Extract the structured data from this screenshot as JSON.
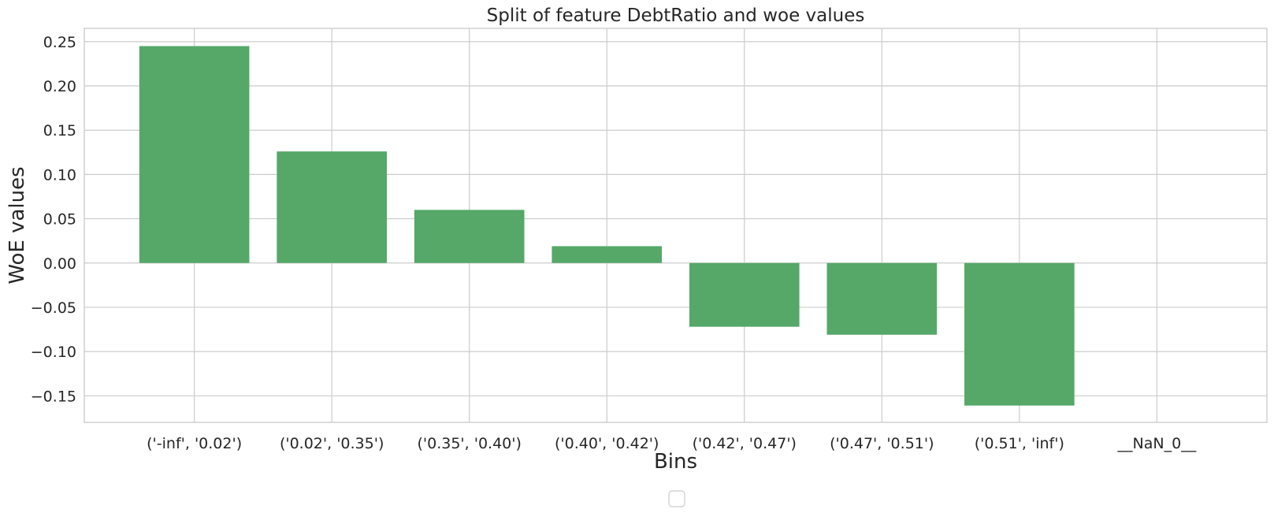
{
  "chart_data": {
    "type": "bar",
    "title": "Split of feature DebtRatio and woe values",
    "xlabel": "Bins",
    "ylabel": "WoE values",
    "categories": [
      "('-inf', '0.02')",
      "('0.02', '0.35')",
      "('0.35', '0.40')",
      "('0.40', '0.42')",
      "('0.42', '0.47')",
      "('0.47', '0.51')",
      "('0.51', 'inf')",
      "__NaN_0__"
    ],
    "values": [
      0.245,
      0.126,
      0.06,
      0.019,
      -0.072,
      -0.081,
      -0.161,
      0.0
    ],
    "ylim": [
      -0.18,
      0.265
    ],
    "yticks": [
      -0.15,
      -0.1,
      -0.05,
      0.0,
      0.05,
      0.1,
      0.15,
      0.2,
      0.25
    ],
    "ytick_labels": [
      "−0.15",
      "−0.10",
      "−0.05",
      "0.00",
      "0.05",
      "0.10",
      "0.15",
      "0.20",
      "0.25"
    ],
    "grid": true,
    "bar_color": "#55a868",
    "legend": {
      "placement": "bottom-center",
      "entries": []
    }
  }
}
